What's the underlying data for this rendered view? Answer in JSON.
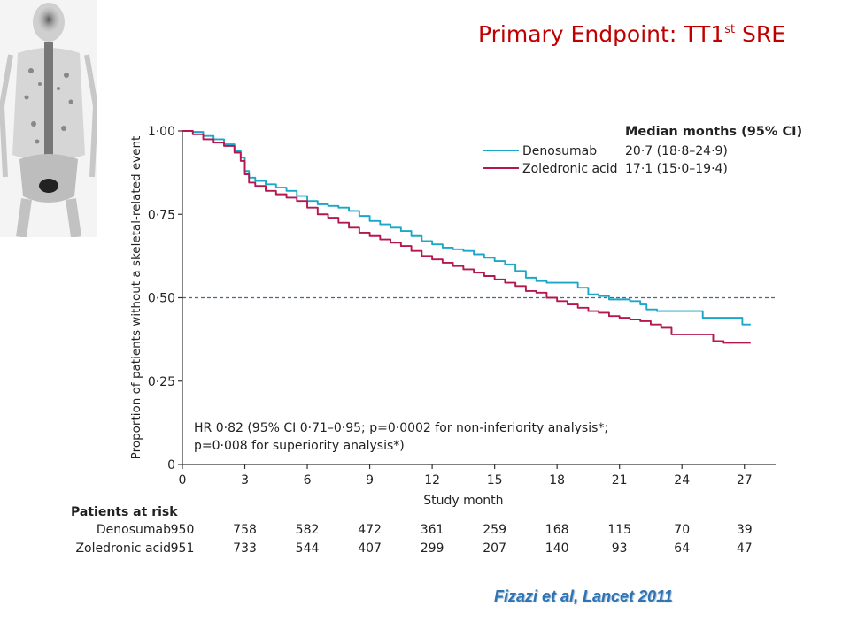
{
  "slide": {
    "title_main": "Primary Endpoint: TT1",
    "title_sup": "st",
    "title_tail": " SRE",
    "citation": "Fizazi et al, Lancet 2011"
  },
  "chart_data": {
    "type": "line",
    "step": true,
    "xlabel": "Study month",
    "ylabel": "Proportion of patients without a skeletal-related event",
    "xlim": [
      0,
      28.5
    ],
    "ylim": [
      0,
      1.0
    ],
    "x_ticks": [
      0,
      3,
      6,
      9,
      12,
      15,
      18,
      21,
      24,
      27
    ],
    "x_tick_labels": [
      "0",
      "3",
      "6",
      "9",
      "12",
      "15",
      "18",
      "21",
      "24",
      "27"
    ],
    "y_ticks": [
      0,
      0.25,
      0.5,
      0.75,
      1.0
    ],
    "y_tick_labels": [
      "0",
      "0·25",
      "0·50",
      "0·75",
      "1·00"
    ],
    "reference_line": 0.5,
    "legend": {
      "header": "Median months (95% CI)",
      "placement": "top-right",
      "entries": [
        {
          "name": "Denosumab",
          "median": "20·7 (18·8–24·9)"
        },
        {
          "name": "Zoledronic acid",
          "median": "17·1 (15·0–19·4)"
        }
      ]
    },
    "annotation": [
      "HR 0·82 (95% CI 0·71–0·95; p=0·0002 for non-inferiority analysis*;",
      "p=0·008 for superiority analysis*)"
    ],
    "series": [
      {
        "name": "Denosumab",
        "color": "#1aa7c9",
        "points": [
          [
            0,
            1.0
          ],
          [
            0.5,
            0.997
          ],
          [
            1,
            0.985
          ],
          [
            1.5,
            0.975
          ],
          [
            2,
            0.96
          ],
          [
            2.5,
            0.94
          ],
          [
            2.8,
            0.92
          ],
          [
            3,
            0.88
          ],
          [
            3.2,
            0.86
          ],
          [
            3.5,
            0.85
          ],
          [
            4,
            0.84
          ],
          [
            4.5,
            0.83
          ],
          [
            5,
            0.82
          ],
          [
            5.5,
            0.805
          ],
          [
            6,
            0.79
          ],
          [
            6.5,
            0.78
          ],
          [
            7,
            0.775
          ],
          [
            7.5,
            0.77
          ],
          [
            8,
            0.76
          ],
          [
            8.5,
            0.745
          ],
          [
            9,
            0.73
          ],
          [
            9.5,
            0.72
          ],
          [
            10,
            0.71
          ],
          [
            10.5,
            0.7
          ],
          [
            11,
            0.685
          ],
          [
            11.5,
            0.67
          ],
          [
            12,
            0.66
          ],
          [
            12.5,
            0.65
          ],
          [
            13,
            0.645
          ],
          [
            13.5,
            0.64
          ],
          [
            14,
            0.63
          ],
          [
            14.5,
            0.62
          ],
          [
            15,
            0.61
          ],
          [
            15.5,
            0.6
          ],
          [
            16,
            0.58
          ],
          [
            16.5,
            0.56
          ],
          [
            17,
            0.55
          ],
          [
            17.5,
            0.545
          ],
          [
            18,
            0.545
          ],
          [
            19,
            0.53
          ],
          [
            19.5,
            0.51
          ],
          [
            20,
            0.505
          ],
          [
            20.5,
            0.495
          ],
          [
            21.5,
            0.49
          ],
          [
            22,
            0.48
          ],
          [
            22.3,
            0.465
          ],
          [
            22.8,
            0.46
          ],
          [
            23.5,
            0.46
          ],
          [
            24,
            0.46
          ],
          [
            24.5,
            0.46
          ],
          [
            25,
            0.44
          ],
          [
            26,
            0.44
          ],
          [
            26.8,
            0.44
          ],
          [
            26.9,
            0.42
          ],
          [
            27.3,
            0.42
          ]
        ]
      },
      {
        "name": "Zoledronic acid",
        "color": "#b5174f",
        "points": [
          [
            0,
            1.0
          ],
          [
            0.5,
            0.99
          ],
          [
            1,
            0.975
          ],
          [
            1.5,
            0.965
          ],
          [
            2,
            0.955
          ],
          [
            2.5,
            0.935
          ],
          [
            2.8,
            0.91
          ],
          [
            3,
            0.87
          ],
          [
            3.2,
            0.845
          ],
          [
            3.5,
            0.835
          ],
          [
            4,
            0.82
          ],
          [
            4.5,
            0.81
          ],
          [
            5,
            0.8
          ],
          [
            5.5,
            0.79
          ],
          [
            6,
            0.77
          ],
          [
            6.5,
            0.75
          ],
          [
            7,
            0.74
          ],
          [
            7.5,
            0.725
          ],
          [
            8,
            0.71
          ],
          [
            8.5,
            0.695
          ],
          [
            9,
            0.685
          ],
          [
            9.5,
            0.675
          ],
          [
            10,
            0.665
          ],
          [
            10.5,
            0.655
          ],
          [
            11,
            0.64
          ],
          [
            11.5,
            0.625
          ],
          [
            12,
            0.615
          ],
          [
            12.5,
            0.605
          ],
          [
            13,
            0.595
          ],
          [
            13.5,
            0.585
          ],
          [
            14,
            0.575
          ],
          [
            14.5,
            0.565
          ],
          [
            15,
            0.555
          ],
          [
            15.5,
            0.545
          ],
          [
            16,
            0.535
          ],
          [
            16.5,
            0.52
          ],
          [
            17,
            0.515
          ],
          [
            17.5,
            0.5
          ],
          [
            18,
            0.49
          ],
          [
            18.5,
            0.48
          ],
          [
            19,
            0.47
          ],
          [
            19.5,
            0.46
          ],
          [
            20,
            0.455
          ],
          [
            20.5,
            0.445
          ],
          [
            21,
            0.44
          ],
          [
            21.5,
            0.435
          ],
          [
            22,
            0.43
          ],
          [
            22.5,
            0.42
          ],
          [
            23,
            0.41
          ],
          [
            23.5,
            0.39
          ],
          [
            24,
            0.39
          ],
          [
            25,
            0.39
          ],
          [
            25.5,
            0.37
          ],
          [
            26,
            0.365
          ],
          [
            27.3,
            0.365
          ]
        ]
      }
    ],
    "at_risk": {
      "header": "Patients at risk",
      "rows": [
        {
          "name": "Denosumab",
          "values": [
            "950",
            "758",
            "582",
            "472",
            "361",
            "259",
            "168",
            "115",
            "70",
            "39"
          ]
        },
        {
          "name": "Zoledronic acid",
          "values": [
            "951",
            "733",
            "544",
            "407",
            "299",
            "207",
            "140",
            "93",
            "64",
            "47"
          ]
        }
      ]
    }
  }
}
